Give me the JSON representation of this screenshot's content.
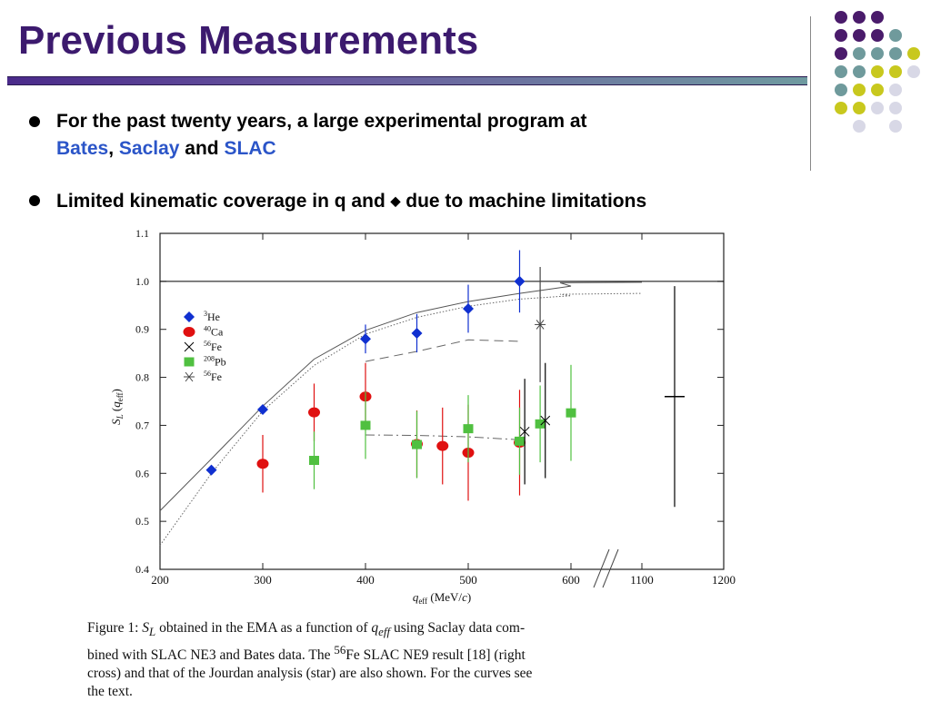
{
  "slide": {
    "title": "Previous Measurements",
    "bullet1_line1": "For the past twenty years, a large experimental program at",
    "bullet1_bates": "Bates",
    "bullet1_comma": ",",
    "bullet1_saclay": "Saclay",
    "bullet1_and": "and",
    "bullet1_slac": "SLAC",
    "bullet2_part1": "Limited kinematic coverage in q and",
    "bullet2_part2": "due to machine limitations",
    "bullet2_symbol": "◆",
    "caption_lines": [
      "Figure 1:  S_L obtained in the EMA as a function of q_eff using Saclay data com-",
      "bined with SLAC NE3 and Bates data.  The 56Fe SLAC NE9 result [18] (right",
      "cross) and that of the Jourdan analysis (star) are also shown.  For the curves see",
      "the text."
    ],
    "colors": {
      "title": "#3c1a6e",
      "accent_blue": "#2b55c8",
      "purple": "#4a1b6b",
      "teal": "#6f9a9c",
      "olive": "#c8c81e",
      "lavender": "#d8d8e6"
    }
  },
  "chart_data": {
    "type": "scatter",
    "ylabel": "S_L (q_eff)",
    "xlabel": "q_eff (MeV/c)",
    "ylim": [
      0.4,
      1.1
    ],
    "x_ticks": [
      "200",
      "300",
      "400",
      "500",
      "600",
      "1100",
      "1200"
    ],
    "y_ticks": [
      "0.4",
      "0.5",
      "0.6",
      "0.7",
      "0.8",
      "0.9",
      "1.0",
      "1.1"
    ],
    "legend": [
      "3He",
      "40Ca",
      "56Fe",
      "208Pb",
      "56Fe"
    ],
    "legend_position": "top-left",
    "series": [
      {
        "name": "3He",
        "marker": "diamond",
        "color": "#1030d0",
        "points": [
          {
            "x": 250,
            "y": 0.607,
            "err": 0.0
          },
          {
            "x": 300,
            "y": 0.733,
            "err": 0.0
          },
          {
            "x": 400,
            "y": 0.88,
            "err": 0.03
          },
          {
            "x": 450,
            "y": 0.892,
            "err": 0.04
          },
          {
            "x": 500,
            "y": 0.943,
            "err": 0.05
          },
          {
            "x": 550,
            "y": 1.0,
            "err": 0.065
          }
        ]
      },
      {
        "name": "40Ca",
        "marker": "circle",
        "color": "#e01010",
        "points": [
          {
            "x": 300,
            "y": 0.62,
            "err": 0.06
          },
          {
            "x": 350,
            "y": 0.727,
            "err": 0.06
          },
          {
            "x": 400,
            "y": 0.76,
            "err": 0.07
          },
          {
            "x": 450,
            "y": 0.661,
            "err": 0.07
          },
          {
            "x": 475,
            "y": 0.657,
            "err": 0.08
          },
          {
            "x": 500,
            "y": 0.643,
            "err": 0.1
          },
          {
            "x": 550,
            "y": 0.664,
            "err": 0.11
          }
        ]
      },
      {
        "name": "208Pb",
        "marker": "square",
        "color": "#50c040",
        "points": [
          {
            "x": 350,
            "y": 0.627,
            "err": 0.06
          },
          {
            "x": 400,
            "y": 0.7,
            "err": 0.07
          },
          {
            "x": 450,
            "y": 0.66,
            "err": 0.07
          },
          {
            "x": 500,
            "y": 0.693,
            "err": 0.07
          },
          {
            "x": 550,
            "y": 0.667,
            "err": 0.07
          },
          {
            "x": 570,
            "y": 0.703,
            "err": 0.08
          },
          {
            "x": 600,
            "y": 0.726,
            "err": 0.1
          }
        ]
      },
      {
        "name": "56Fe",
        "marker": "x",
        "color": "#000000",
        "points": [
          {
            "x": 555,
            "y": 0.687,
            "err": 0.11
          },
          {
            "x": 575,
            "y": 0.71,
            "err": 0.12
          }
        ]
      },
      {
        "name": "56Fe",
        "marker": "star",
        "color": "#444444",
        "points": [
          {
            "x": 570,
            "y": 0.91,
            "err": 0.12
          }
        ]
      },
      {
        "name": "56Fe SLAC NE9",
        "marker": "cross",
        "color": "#000000",
        "points": [
          {
            "x": 1140,
            "y": 0.76,
            "err": 0.23
          }
        ]
      }
    ],
    "curves": [
      {
        "style": "solid",
        "points": [
          [
            200,
            0.522
          ],
          [
            250,
            0.63
          ],
          [
            300,
            0.74
          ],
          [
            350,
            0.838
          ],
          [
            400,
            0.898
          ],
          [
            450,
            0.935
          ],
          [
            500,
            0.958
          ],
          [
            550,
            0.975
          ],
          [
            600,
            0.99
          ],
          [
            1000,
            0.997
          ],
          [
            1100,
            0.998
          ]
        ]
      },
      {
        "style": "dotted",
        "points": [
          [
            200,
            0.45
          ],
          [
            250,
            0.6
          ],
          [
            300,
            0.73
          ],
          [
            350,
            0.825
          ],
          [
            400,
            0.89
          ],
          [
            450,
            0.925
          ],
          [
            500,
            0.948
          ],
          [
            550,
            0.963
          ],
          [
            600,
            0.97
          ],
          [
            1000,
            0.973
          ],
          [
            1100,
            0.975
          ]
        ]
      },
      {
        "style": "dashed",
        "points": [
          [
            400,
            0.833
          ],
          [
            450,
            0.854
          ],
          [
            500,
            0.878
          ],
          [
            550,
            0.875
          ]
        ]
      },
      {
        "style": "dashdot",
        "points": [
          [
            400,
            0.68
          ],
          [
            450,
            0.679
          ],
          [
            500,
            0.676
          ],
          [
            550,
            0.67
          ]
        ]
      }
    ],
    "reference_line": 1.0
  }
}
